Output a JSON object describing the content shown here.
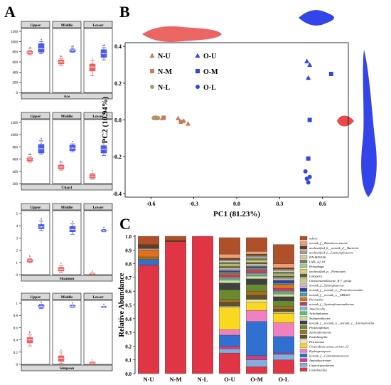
{
  "panel_labels": [
    "A",
    "B",
    "C"
  ],
  "colors": {
    "upper": "#e84a4a",
    "middle": "#e84a4a",
    "red": "#e84a4a",
    "blue": "#3344e8",
    "strip": "#d8d8d8",
    "NU_tri": "#c97a5a",
    "NM_sq": "#c97a5a",
    "NL_circ": "#a89a6a"
  },
  "chart_data": [
    {
      "type": "box",
      "title": "Ace",
      "facets": [
        "Upper",
        "Middle",
        "Lower"
      ],
      "yticks": [
        0,
        200,
        400,
        600,
        800,
        1000,
        1200
      ],
      "ylim": [
        0,
        1200
      ],
      "groups": [
        {
          "facet": "Upper",
          "series": "N",
          "median": 790,
          "q1": 760,
          "q3": 810,
          "min": 740,
          "max": 830,
          "letter": "ab"
        },
        {
          "facet": "Upper",
          "series": "O",
          "median": 860,
          "q1": 790,
          "q3": 960,
          "min": 760,
          "max": 1000,
          "letter": "a"
        },
        {
          "facet": "Middle",
          "series": "N",
          "median": 600,
          "q1": 560,
          "q3": 640,
          "min": 530,
          "max": 660,
          "letter": "bc"
        },
        {
          "facet": "Middle",
          "series": "O",
          "median": 820,
          "q1": 800,
          "q3": 840,
          "min": 790,
          "max": 860,
          "letter": "ab"
        },
        {
          "facet": "Lower",
          "series": "N",
          "median": 500,
          "q1": 420,
          "q3": 560,
          "min": 330,
          "max": 620,
          "letter": "c"
        },
        {
          "facet": "Lower",
          "series": "O",
          "median": 760,
          "q1": 690,
          "q3": 840,
          "min": 640,
          "max": 880,
          "letter": "ab"
        }
      ]
    },
    {
      "type": "box",
      "title": "Chao1",
      "facets": [
        "Upper",
        "Middle",
        "Lower"
      ],
      "yticks": [
        200,
        400,
        600,
        800,
        1000,
        1200
      ],
      "ylim": [
        200,
        1200
      ],
      "groups": [
        {
          "facet": "Upper",
          "series": "N",
          "median": 600,
          "q1": 570,
          "q3": 620,
          "min": 550,
          "max": 640,
          "letter": "ab"
        },
        {
          "facet": "Upper",
          "series": "O",
          "median": 770,
          "q1": 700,
          "q3": 840,
          "min": 680,
          "max": 900,
          "letter": "a"
        },
        {
          "facet": "Middle",
          "series": "N",
          "median": 470,
          "q1": 440,
          "q3": 500,
          "min": 420,
          "max": 520,
          "letter": "bc"
        },
        {
          "facet": "Middle",
          "series": "O",
          "median": 780,
          "q1": 740,
          "q3": 830,
          "min": 720,
          "max": 850,
          "letter": "a"
        },
        {
          "facet": "Lower",
          "series": "N",
          "median": 320,
          "q1": 290,
          "q3": 350,
          "min": 270,
          "max": 370,
          "letter": "c"
        },
        {
          "facet": "Lower",
          "series": "O",
          "median": 760,
          "q1": 700,
          "q3": 820,
          "min": 660,
          "max": 880,
          "letter": "a"
        }
      ]
    },
    {
      "type": "box",
      "title": "Shannon",
      "facets": [
        "Upper",
        "Middle",
        "Lower"
      ],
      "yticks": [
        0,
        1,
        2,
        3,
        4,
        5
      ],
      "ylim": [
        0,
        5
      ],
      "groups": [
        {
          "facet": "Upper",
          "series": "N",
          "median": 1.15,
          "q1": 1.05,
          "q3": 1.25,
          "min": 1.0,
          "max": 1.3,
          "letter": "b"
        },
        {
          "facet": "Upper",
          "series": "O",
          "median": 3.9,
          "q1": 3.75,
          "q3": 4.1,
          "min": 3.6,
          "max": 4.4,
          "letter": "a"
        },
        {
          "facet": "Middle",
          "series": "N",
          "median": 0.45,
          "q1": 0.3,
          "q3": 0.6,
          "min": 0.2,
          "max": 0.75,
          "letter": "c"
        },
        {
          "facet": "Middle",
          "series": "O",
          "median": 3.7,
          "q1": 3.5,
          "q3": 3.95,
          "min": 3.3,
          "max": 4.15,
          "letter": "a"
        },
        {
          "facet": "Lower",
          "series": "N",
          "median": 0.08,
          "q1": 0.05,
          "q3": 0.12,
          "min": 0.03,
          "max": 0.15,
          "letter": "c"
        },
        {
          "facet": "Lower",
          "series": "O",
          "median": 3.6,
          "q1": 3.55,
          "q3": 3.65,
          "min": 3.5,
          "max": 3.7,
          "letter": "a"
        }
      ]
    },
    {
      "type": "box",
      "title": "Simpson",
      "facets": [
        "Upper",
        "Middle",
        "Lower"
      ],
      "yticks": [
        0.0,
        0.2,
        0.4,
        0.6,
        0.8,
        1.0
      ],
      "ylim": [
        0.0,
        1.0
      ],
      "groups": [
        {
          "facet": "Upper",
          "series": "N",
          "median": 0.4,
          "q1": 0.35,
          "q3": 0.44,
          "min": 0.3,
          "max": 0.48,
          "letter": "b"
        },
        {
          "facet": "Upper",
          "series": "O",
          "median": 0.95,
          "q1": 0.93,
          "q3": 0.97,
          "min": 0.91,
          "max": 0.98,
          "letter": "a"
        },
        {
          "facet": "Middle",
          "series": "N",
          "median": 0.1,
          "q1": 0.05,
          "q3": 0.14,
          "min": 0.02,
          "max": 0.2,
          "letter": "c"
        },
        {
          "facet": "Middle",
          "series": "O",
          "median": 0.95,
          "q1": 0.94,
          "q3": 0.96,
          "min": 0.93,
          "max": 0.97,
          "letter": "a"
        },
        {
          "facet": "Lower",
          "series": "N",
          "median": 0.02,
          "q1": 0.01,
          "q3": 0.03,
          "min": 0.0,
          "max": 0.04,
          "letter": "c"
        },
        {
          "facet": "Lower",
          "series": "O",
          "median": 0.94,
          "q1": 0.935,
          "q3": 0.945,
          "min": 0.93,
          "max": 0.95,
          "letter": "a"
        }
      ]
    },
    {
      "type": "scatter",
      "xlabel": "PC1 (81.23%)",
      "ylabel": "PC2 (10.94%)",
      "xlim": [
        -0.78,
        0.78
      ],
      "ylim": [
        -0.42,
        0.42
      ],
      "xticks": [
        -0.6,
        -0.3,
        0.0,
        0.3,
        0.6
      ],
      "yticks": [
        -0.4,
        -0.2,
        0.0,
        0.2,
        0.4
      ],
      "legend": [
        "N-U",
        "N-M",
        "N-L",
        "O-U",
        "O-M",
        "O-L"
      ],
      "series": [
        {
          "name": "N-U",
          "marker": "triangle",
          "color": "#c97a5a",
          "points": [
            [
              -0.56,
              0.01
            ],
            [
              -0.52,
              0.01
            ],
            [
              -0.41,
              0.01
            ],
            [
              -0.37,
              -0.005
            ],
            [
              -0.34,
              -0.02
            ]
          ]
        },
        {
          "name": "N-M",
          "marker": "square",
          "color": "#c97a5a",
          "points": [
            [
              -0.57,
              0.012
            ],
            [
              -0.51,
              0.012
            ],
            [
              -0.39,
              -0.01
            ]
          ]
        },
        {
          "name": "N-L",
          "marker": "circle",
          "color": "#a89a6a",
          "points": [
            [
              -0.58,
              0.01
            ],
            [
              -0.55,
              0.01
            ]
          ]
        },
        {
          "name": "O-U",
          "marker": "triangle",
          "color": "#3344e8",
          "points": [
            [
              0.49,
              0.32
            ],
            [
              0.51,
              0.3
            ],
            [
              0.5,
              0.23
            ]
          ]
        },
        {
          "name": "O-M",
          "marker": "square",
          "color": "#3344e8",
          "points": [
            [
              0.66,
              0.25
            ],
            [
              0.51,
              0.0
            ],
            [
              0.5,
              -0.21
            ]
          ]
        },
        {
          "name": "O-L",
          "marker": "circle",
          "color": "#3344e8",
          "points": [
            [
              0.48,
              -0.28
            ],
            [
              0.49,
              -0.32
            ],
            [
              0.5,
              -0.34
            ],
            [
              0.51,
              -0.31
            ]
          ]
        }
      ]
    },
    {
      "type": "bar",
      "stacked": true,
      "ylabel": "Relative Abundance",
      "ylim": [
        0.0,
        1.0
      ],
      "yticks": [
        0.0,
        0.1,
        0.2,
        0.3,
        0.4,
        0.5,
        0.6,
        0.7,
        0.8,
        0.9,
        1.0
      ],
      "categories": [
        "N-U",
        "N-M",
        "N-L",
        "O-U",
        "O-M",
        "O-L"
      ],
      "legend": [
        "others",
        "norank_f__Ruminococcaceae",
        "unclassified_k__norank_d__Bacteria",
        "unclassified_f__Lachnospiraceae",
        "HN-HF0106",
        "LNR_A2-18",
        "Holophaga",
        "unclassified_p__Firmicutes",
        "Lutispora",
        "Christensenellaceae_R-7_group",
        "norank_f__Synergistaceae",
        "norank_f__norank_o__Proteinivoracales",
        "norank_f__norank_o__MBA03",
        "Prevotella",
        "norank_f__Syntrophomonadaceae",
        "Anaerocella",
        "Acholeplasma",
        "Sedimentibacter",
        "norank_f__norank_o__norank_c__Limnochordia",
        "Proteiniphilum",
        "Syntrophomonas",
        "Fastidiosipila",
        "Petrimonas",
        "Clostridium_sensu_stricto_12",
        "Hydrogenispora",
        "norank_f__Caloramatoraceae",
        "Aminobacterium",
        "Caproiciproducens",
        "Lactobacillus"
      ],
      "stack_colors": [
        "#b0502a",
        "#f0a070",
        "#6a3a20",
        "#a0a0a0",
        "#d8c8a0",
        "#808060",
        "#a0c8a0",
        "#e0d060",
        "#606030",
        "#c0d080",
        "#e0b0d0",
        "#3040a0",
        "#40a0a0",
        "#e07020",
        "#c04060",
        "#80c0e0",
        "#60c060",
        "#d0e0a0",
        "#404040",
        "#6a8a30",
        "#a07020",
        "#605030",
        "#e8e8a0",
        "#f8d820",
        "#f080c0",
        "#3070d0",
        "#d04080",
        "#80b0e0",
        "#e03545"
      ],
      "series_values": [
        [
          0.06,
          0.03,
          0.0,
          0.12,
          0.1,
          0.14
        ],
        [
          0.0,
          0.0,
          0.0,
          0.03,
          0.02,
          0.03
        ],
        [
          0.03,
          0.01,
          0.0,
          0.01,
          0.01,
          0.01
        ],
        [
          0.01,
          0.0,
          0.0,
          0.01,
          0.01,
          0.01
        ],
        [
          0.0,
          0.0,
          0.0,
          0.01,
          0.01,
          0.01
        ],
        [
          0.0,
          0.0,
          0.0,
          0.01,
          0.01,
          0.01
        ],
        [
          0.0,
          0.0,
          0.0,
          0.01,
          0.01,
          0.01
        ],
        [
          0.0,
          0.0,
          0.0,
          0.01,
          0.01,
          0.01
        ],
        [
          0.0,
          0.0,
          0.0,
          0.01,
          0.01,
          0.01
        ],
        [
          0.0,
          0.0,
          0.0,
          0.01,
          0.01,
          0.01
        ],
        [
          0.0,
          0.0,
          0.0,
          0.01,
          0.01,
          0.01
        ],
        [
          0.0,
          0.0,
          0.0,
          0.01,
          0.01,
          0.02
        ],
        [
          0.0,
          0.0,
          0.0,
          0.01,
          0.01,
          0.01
        ],
        [
          0.05,
          0.0,
          0.0,
          0.01,
          0.01,
          0.03
        ],
        [
          0.0,
          0.0,
          0.0,
          0.02,
          0.02,
          0.02
        ],
        [
          0.0,
          0.0,
          0.0,
          0.01,
          0.01,
          0.01
        ],
        [
          0.0,
          0.0,
          0.0,
          0.01,
          0.01,
          0.01
        ],
        [
          0.0,
          0.0,
          0.0,
          0.02,
          0.02,
          0.02
        ],
        [
          0.0,
          0.0,
          0.0,
          0.05,
          0.04,
          0.03
        ],
        [
          0.0,
          0.0,
          0.0,
          0.07,
          0.05,
          0.04
        ],
        [
          0.02,
          0.0,
          0.0,
          0.02,
          0.03,
          0.02
        ],
        [
          0.0,
          0.0,
          0.0,
          0.03,
          0.03,
          0.02
        ],
        [
          0.0,
          0.0,
          0.0,
          0.01,
          0.02,
          0.01
        ],
        [
          0.0,
          0.0,
          0.0,
          0.16,
          0.06,
          0.07
        ],
        [
          0.0,
          0.0,
          0.0,
          0.04,
          0.08,
          0.1
        ],
        [
          0.04,
          0.0,
          0.0,
          0.08,
          0.25,
          0.12
        ],
        [
          0.0,
          0.0,
          0.0,
          0.02,
          0.03,
          0.01
        ],
        [
          0.0,
          0.0,
          0.0,
          0.03,
          0.05,
          0.04
        ],
        [
          0.79,
          0.96,
          1.0,
          0.15,
          0.05,
          0.1
        ]
      ]
    }
  ]
}
